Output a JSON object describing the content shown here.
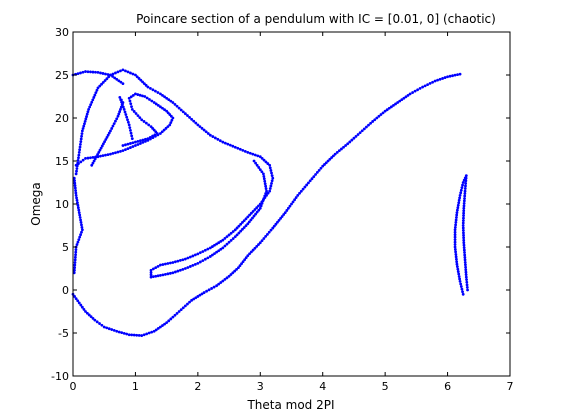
{
  "chart_data": {
    "type": "scatter",
    "title": "Poincare section of a pendulum with IC = [0.01, 0] (chaotic)",
    "xlabel": "Theta mod 2PI",
    "ylabel": "Omega",
    "xlim": [
      0,
      7
    ],
    "ylim": [
      -10,
      30
    ],
    "xticks": [
      "0",
      "1",
      "2",
      "3",
      "4",
      "5",
      "6",
      "7"
    ],
    "yticks": [
      "-10",
      "-5",
      "0",
      "5",
      "10",
      "15",
      "20",
      "25",
      "30"
    ],
    "grid": false,
    "marker": "dot",
    "color": "#0000ff",
    "curves": [
      [
        [
          0.05,
          13.5
        ],
        [
          0.1,
          16.0
        ],
        [
          0.15,
          18.5
        ],
        [
          0.25,
          21.0
        ],
        [
          0.4,
          23.5
        ],
        [
          0.6,
          25.0
        ],
        [
          0.8,
          25.6
        ],
        [
          1.0,
          25.0
        ],
        [
          1.2,
          23.6
        ],
        [
          1.4,
          22.8
        ],
        [
          1.6,
          21.8
        ],
        [
          1.8,
          20.5
        ],
        [
          2.0,
          19.2
        ],
        [
          2.2,
          18.0
        ],
        [
          2.4,
          17.2
        ],
        [
          2.6,
          16.6
        ],
        [
          2.8,
          16.0
        ],
        [
          3.0,
          15.5
        ],
        [
          3.15,
          14.5
        ],
        [
          3.2,
          13.0
        ],
        [
          3.15,
          11.5
        ],
        [
          3.0,
          10.0
        ],
        [
          2.8,
          8.5
        ],
        [
          2.6,
          7.0
        ],
        [
          2.4,
          5.8
        ],
        [
          2.2,
          4.9
        ],
        [
          2.0,
          4.2
        ],
        [
          1.8,
          3.6
        ],
        [
          1.6,
          3.2
        ],
        [
          1.4,
          2.9
        ],
        [
          1.25,
          2.3
        ],
        [
          1.25,
          1.5
        ],
        [
          1.4,
          1.7
        ],
        [
          1.6,
          2.0
        ],
        [
          1.8,
          2.5
        ],
        [
          2.0,
          3.1
        ],
        [
          2.2,
          3.9
        ],
        [
          2.4,
          4.9
        ],
        [
          2.6,
          6.2
        ],
        [
          2.8,
          7.7
        ],
        [
          3.0,
          9.5
        ],
        [
          3.1,
          11.5
        ],
        [
          3.05,
          13.5
        ],
        [
          2.9,
          15.0
        ]
      ],
      [
        [
          0.0,
          25.0
        ],
        [
          0.2,
          25.4
        ],
        [
          0.4,
          25.3
        ],
        [
          0.6,
          25.0
        ],
        [
          0.8,
          24.0
        ]
      ],
      [
        [
          0.02,
          13.0
        ],
        [
          0.05,
          11.0
        ],
        [
          0.1,
          9.0
        ],
        [
          0.15,
          7.0
        ],
        [
          0.05,
          5.0
        ],
        [
          0.02,
          2.0
        ]
      ],
      [
        [
          0.0,
          -0.5
        ],
        [
          0.1,
          -1.5
        ],
        [
          0.2,
          -2.5
        ],
        [
          0.35,
          -3.5
        ],
        [
          0.5,
          -4.3
        ],
        [
          0.7,
          -4.8
        ],
        [
          0.9,
          -5.2
        ],
        [
          1.1,
          -5.3
        ],
        [
          1.3,
          -4.8
        ],
        [
          1.5,
          -3.8
        ],
        [
          1.7,
          -2.5
        ],
        [
          1.9,
          -1.2
        ],
        [
          2.1,
          -0.3
        ],
        [
          2.3,
          0.5
        ],
        [
          2.5,
          1.6
        ],
        [
          2.65,
          2.6
        ],
        [
          2.8,
          4.0
        ],
        [
          3.0,
          5.5
        ],
        [
          3.2,
          7.2
        ],
        [
          3.4,
          9.0
        ],
        [
          3.6,
          11.0
        ],
        [
          3.8,
          12.7
        ],
        [
          4.0,
          14.4
        ],
        [
          4.2,
          15.8
        ],
        [
          4.4,
          17.0
        ],
        [
          4.6,
          18.3
        ],
        [
          4.8,
          19.6
        ],
        [
          5.0,
          20.8
        ],
        [
          5.2,
          21.8
        ],
        [
          5.4,
          22.8
        ],
        [
          5.6,
          23.6
        ],
        [
          5.8,
          24.3
        ],
        [
          6.0,
          24.8
        ],
        [
          6.2,
          25.1
        ]
      ],
      [
        [
          0.05,
          14.5
        ],
        [
          0.2,
          15.3
        ],
        [
          0.4,
          15.5
        ],
        [
          0.6,
          15.8
        ],
        [
          0.8,
          16.2
        ],
        [
          1.0,
          16.8
        ],
        [
          1.2,
          17.4
        ],
        [
          1.4,
          18.2
        ],
        [
          1.55,
          19.2
        ],
        [
          1.6,
          20.0
        ],
        [
          1.5,
          20.8
        ],
        [
          1.3,
          21.8
        ],
        [
          1.15,
          22.5
        ],
        [
          1.0,
          22.8
        ],
        [
          0.9,
          22.3
        ],
        [
          0.95,
          21.0
        ],
        [
          1.1,
          19.8
        ],
        [
          1.25,
          19.0
        ],
        [
          1.35,
          18.2
        ],
        [
          1.2,
          17.6
        ],
        [
          1.0,
          17.2
        ],
        [
          0.8,
          16.8
        ]
      ],
      [
        [
          0.3,
          14.5
        ],
        [
          0.45,
          16.5
        ],
        [
          0.6,
          18.5
        ],
        [
          0.72,
          20.2
        ],
        [
          0.8,
          21.8
        ],
        [
          0.75,
          22.4
        ],
        [
          0.82,
          21.0
        ],
        [
          0.9,
          19.2
        ],
        [
          0.95,
          17.6
        ]
      ],
      [
        [
          6.25,
          -0.5
        ],
        [
          6.2,
          1.0
        ],
        [
          6.15,
          3.0
        ],
        [
          6.12,
          5.0
        ],
        [
          6.12,
          7.0
        ],
        [
          6.15,
          9.0
        ],
        [
          6.2,
          11.0
        ],
        [
          6.25,
          12.5
        ],
        [
          6.3,
          13.3
        ],
        [
          6.28,
          11.5
        ],
        [
          6.26,
          9.5
        ],
        [
          6.25,
          7.5
        ],
        [
          6.26,
          5.5
        ],
        [
          6.28,
          3.5
        ],
        [
          6.3,
          1.5
        ],
        [
          6.32,
          0.0
        ]
      ]
    ]
  }
}
